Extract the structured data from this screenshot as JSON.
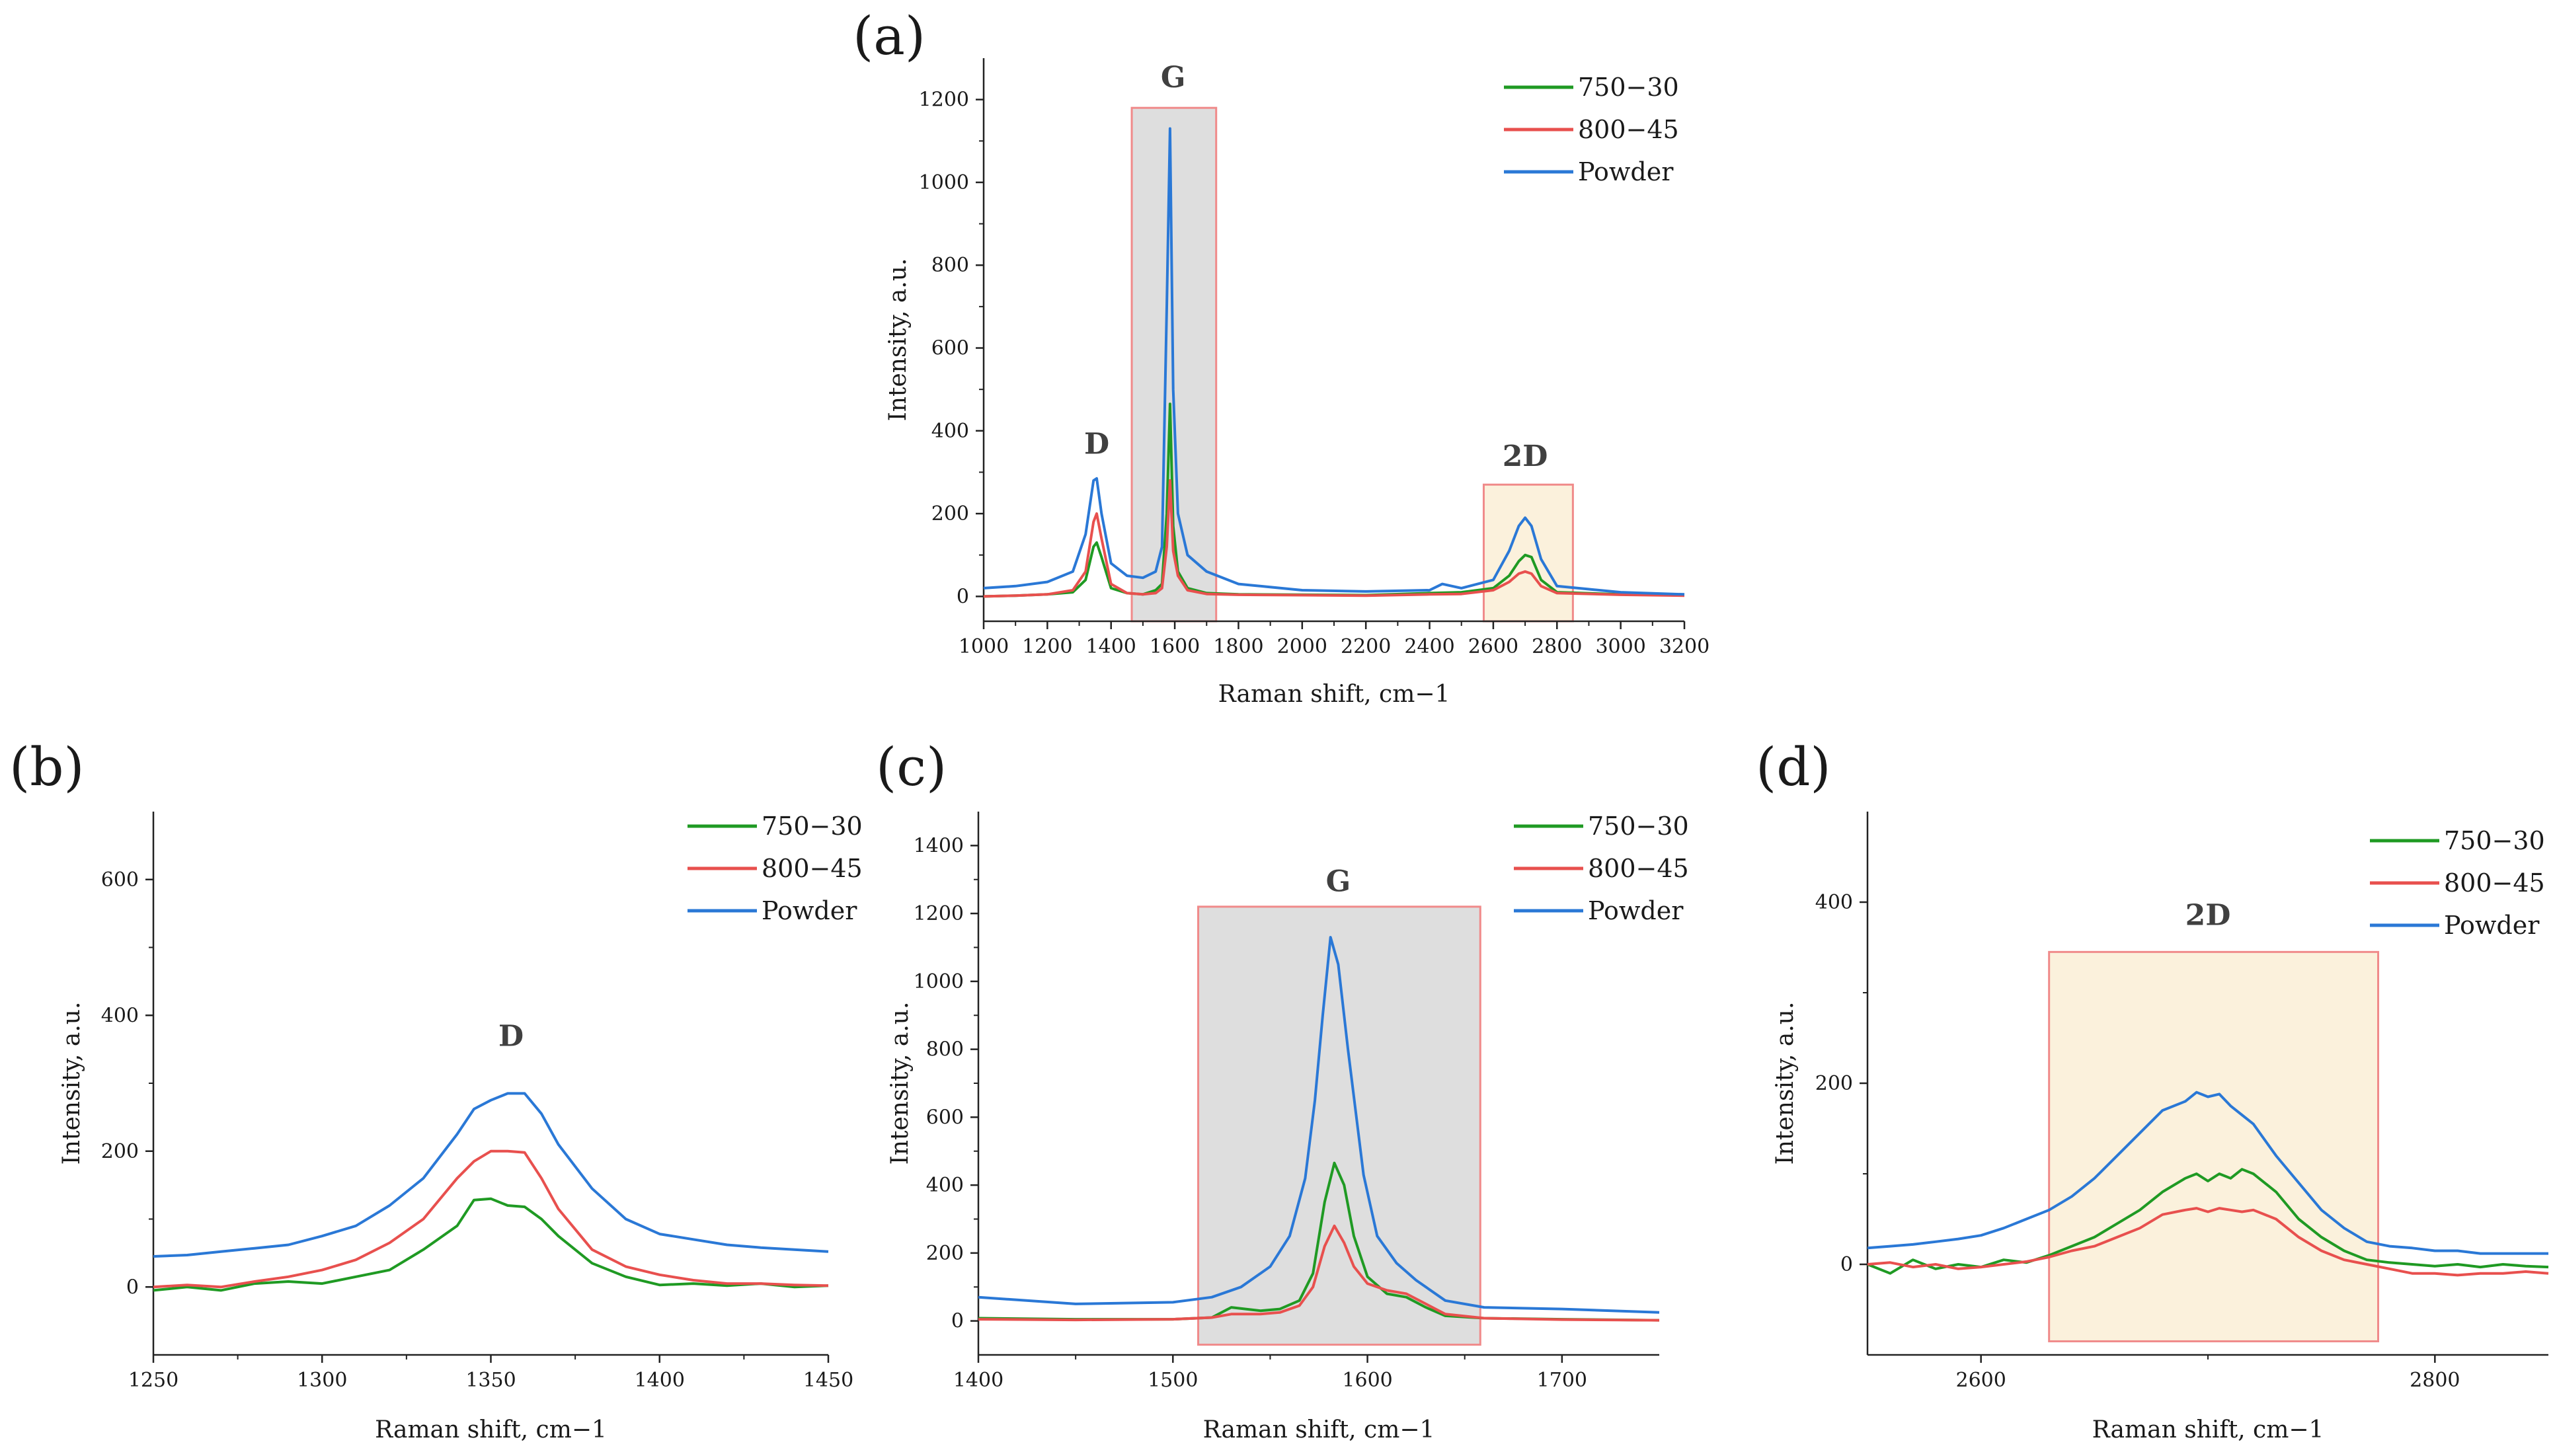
{
  "series_colors": {
    "750-30": "#1f9a23",
    "800-45": "#e8504e",
    "Powder": "#2a78d6"
  },
  "legend": [
    "750−30",
    "800−45",
    "Powder"
  ],
  "chart_data": [
    {
      "panel": "(a)",
      "type": "line",
      "xlabel": "Raman shift, cm−1",
      "ylabel": "Intensity, a.u.",
      "xlim": [
        1000,
        3200
      ],
      "ylim": [
        -60,
        1300
      ],
      "xticks": [
        1000,
        1200,
        1400,
        1600,
        1800,
        2000,
        2200,
        2400,
        2600,
        2800,
        3000,
        3200
      ],
      "yticks": [
        0,
        200,
        400,
        600,
        800,
        1000,
        1200
      ],
      "regions": [
        {
          "label": "G",
          "x": [
            1465,
            1730
          ],
          "y": [
            -60,
            1180
          ],
          "fill": "#dedede",
          "stroke": "#f08a8a"
        },
        {
          "label": "2D",
          "x": [
            2570,
            2850
          ],
          "y": [
            -60,
            270
          ],
          "fill": "#fbf1dc",
          "stroke": "#f08a8a"
        }
      ],
      "annotations": [
        {
          "text": "D",
          "x": 1355,
          "y": 345
        },
        {
          "text": "G",
          "x": 1595,
          "y": 1230
        },
        {
          "text": "2D",
          "x": 2700,
          "y": 315
        }
      ],
      "series": [
        {
          "name": "750−30",
          "x": [
            1000,
            1100,
            1200,
            1280,
            1320,
            1345,
            1355,
            1370,
            1400,
            1450,
            1500,
            1540,
            1560,
            1575,
            1585,
            1595,
            1610,
            1640,
            1700,
            1800,
            2000,
            2200,
            2400,
            2500,
            2600,
            2650,
            2680,
            2700,
            2720,
            2750,
            2800,
            3000,
            3200
          ],
          "y": [
            0,
            2,
            5,
            10,
            40,
            120,
            130,
            95,
            20,
            8,
            5,
            15,
            30,
            200,
            465,
            170,
            60,
            20,
            8,
            5,
            4,
            3,
            8,
            10,
            20,
            50,
            85,
            100,
            95,
            40,
            10,
            5,
            3
          ]
        },
        {
          "name": "800−45",
          "x": [
            1000,
            1100,
            1200,
            1280,
            1320,
            1345,
            1355,
            1370,
            1400,
            1450,
            1500,
            1540,
            1560,
            1575,
            1585,
            1595,
            1610,
            1640,
            1700,
            1800,
            2000,
            2200,
            2400,
            2500,
            2600,
            2650,
            2680,
            2700,
            2720,
            2750,
            2800,
            3000,
            3200
          ],
          "y": [
            0,
            2,
            5,
            15,
            60,
            180,
            200,
            140,
            30,
            8,
            5,
            8,
            20,
            120,
            280,
            110,
            50,
            15,
            6,
            4,
            3,
            2,
            5,
            6,
            15,
            35,
            55,
            60,
            55,
            25,
            8,
            4,
            2
          ]
        },
        {
          "name": "Powder",
          "x": [
            1000,
            1100,
            1200,
            1280,
            1320,
            1345,
            1355,
            1370,
            1400,
            1450,
            1500,
            1540,
            1560,
            1575,
            1585,
            1595,
            1610,
            1640,
            1700,
            1800,
            2000,
            2200,
            2400,
            2440,
            2500,
            2600,
            2650,
            2680,
            2700,
            2720,
            2750,
            2800,
            3000,
            3200
          ],
          "y": [
            20,
            25,
            35,
            60,
            150,
            280,
            285,
            200,
            80,
            50,
            45,
            60,
            120,
            700,
            1130,
            500,
            200,
            100,
            60,
            30,
            15,
            12,
            15,
            30,
            20,
            40,
            110,
            170,
            190,
            170,
            90,
            25,
            10,
            5
          ]
        }
      ]
    },
    {
      "panel": "(b)",
      "type": "line",
      "xlabel": "Raman shift, cm−1",
      "ylabel": "Intensity, a.u.",
      "xlim": [
        1250,
        1450
      ],
      "ylim": [
        -100,
        700
      ],
      "xticks": [
        1250,
        1300,
        1350,
        1400,
        1450
      ],
      "yticks": [
        0,
        200,
        400,
        600
      ],
      "regions": [],
      "annotations": [
        {
          "text": "D",
          "x": 1356,
          "y": 355
        }
      ],
      "series": [
        {
          "name": "750−30",
          "x": [
            1250,
            1260,
            1270,
            1280,
            1290,
            1300,
            1310,
            1320,
            1330,
            1340,
            1345,
            1350,
            1355,
            1360,
            1365,
            1370,
            1380,
            1390,
            1400,
            1410,
            1420,
            1430,
            1440,
            1450
          ],
          "y": [
            -5,
            0,
            -5,
            5,
            8,
            5,
            15,
            25,
            55,
            90,
            128,
            130,
            120,
            118,
            100,
            75,
            35,
            15,
            3,
            5,
            2,
            5,
            0,
            2
          ]
        },
        {
          "name": "800−45",
          "x": [
            1250,
            1260,
            1270,
            1280,
            1290,
            1300,
            1310,
            1320,
            1330,
            1340,
            1345,
            1350,
            1355,
            1360,
            1365,
            1370,
            1380,
            1390,
            1400,
            1410,
            1420,
            1430,
            1440,
            1450
          ],
          "y": [
            0,
            3,
            0,
            8,
            15,
            25,
            40,
            65,
            100,
            160,
            185,
            200,
            200,
            198,
            160,
            115,
            55,
            30,
            18,
            10,
            5,
            5,
            3,
            2
          ]
        },
        {
          "name": "Powder",
          "x": [
            1250,
            1260,
            1270,
            1280,
            1290,
            1300,
            1310,
            1320,
            1330,
            1340,
            1345,
            1350,
            1355,
            1360,
            1365,
            1370,
            1380,
            1390,
            1400,
            1410,
            1420,
            1430,
            1440,
            1450
          ],
          "y": [
            45,
            47,
            52,
            57,
            62,
            75,
            90,
            120,
            160,
            225,
            262,
            275,
            285,
            285,
            255,
            210,
            145,
            100,
            78,
            70,
            62,
            58,
            55,
            52
          ]
        }
      ]
    },
    {
      "panel": "(c)",
      "type": "line",
      "xlabel": "Raman shift, cm−1",
      "ylabel": "Intensity, a.u.",
      "xlim": [
        1400,
        1750
      ],
      "ylim": [
        -100,
        1500
      ],
      "xticks": [
        1400,
        1500,
        1600,
        1700
      ],
      "yticks": [
        0,
        200,
        400,
        600,
        800,
        1000,
        1200,
        1400
      ],
      "regions": [
        {
          "label": "G",
          "x": [
            1513,
            1658
          ],
          "y": [
            -70,
            1220
          ],
          "fill": "#dedede",
          "stroke": "#f08a8a"
        }
      ],
      "annotations": [
        {
          "text": "G",
          "x": 1585,
          "y": 1265
        }
      ],
      "series": [
        {
          "name": "750−30",
          "x": [
            1400,
            1450,
            1500,
            1520,
            1530,
            1545,
            1555,
            1565,
            1572,
            1578,
            1583,
            1588,
            1593,
            1600,
            1610,
            1620,
            1630,
            1640,
            1660,
            1700,
            1750
          ],
          "y": [
            8,
            5,
            5,
            10,
            40,
            30,
            35,
            60,
            140,
            350,
            465,
            400,
            250,
            130,
            80,
            70,
            40,
            15,
            8,
            5,
            2
          ]
        },
        {
          "name": "800−45",
          "x": [
            1400,
            1450,
            1500,
            1520,
            1530,
            1545,
            1555,
            1565,
            1572,
            1578,
            1583,
            1588,
            1593,
            1600,
            1610,
            1620,
            1630,
            1640,
            1660,
            1700,
            1750
          ],
          "y": [
            5,
            3,
            5,
            10,
            20,
            20,
            25,
            45,
            100,
            220,
            280,
            230,
            160,
            110,
            90,
            80,
            50,
            20,
            8,
            4,
            2
          ]
        },
        {
          "name": "Powder",
          "x": [
            1400,
            1450,
            1500,
            1520,
            1535,
            1550,
            1560,
            1568,
            1573,
            1577,
            1581,
            1585,
            1590,
            1598,
            1605,
            1615,
            1625,
            1640,
            1660,
            1700,
            1750
          ],
          "y": [
            70,
            50,
            55,
            70,
            100,
            160,
            250,
            420,
            650,
            900,
            1130,
            1050,
            800,
            430,
            250,
            170,
            120,
            60,
            40,
            35,
            25
          ]
        }
      ]
    },
    {
      "panel": "(d)",
      "type": "line",
      "xlabel": "Raman shift, cm−1",
      "ylabel": "Intensity, a.u.",
      "xlim": [
        2550,
        2850
      ],
      "ylim": [
        -100,
        500
      ],
      "xticks": [
        2600,
        2800
      ],
      "yticks": [
        0,
        200,
        400
      ],
      "regions": [
        {
          "label": "2D",
          "x": [
            2630,
            2775
          ],
          "y": [
            -85,
            345
          ],
          "fill": "#fbf1dc",
          "stroke": "#f08a8a"
        }
      ],
      "annotations": [
        {
          "text": "2D",
          "x": 2700,
          "y": 375
        }
      ],
      "series": [
        {
          "name": "750−30",
          "x": [
            2550,
            2560,
            2570,
            2580,
            2590,
            2600,
            2610,
            2620,
            2630,
            2640,
            2650,
            2660,
            2670,
            2680,
            2690,
            2695,
            2700,
            2705,
            2710,
            2715,
            2720,
            2730,
            2740,
            2750,
            2760,
            2770,
            2780,
            2790,
            2800,
            2810,
            2820,
            2830,
            2840,
            2850
          ],
          "y": [
            0,
            -10,
            5,
            -5,
            0,
            -3,
            5,
            2,
            10,
            20,
            30,
            45,
            60,
            80,
            95,
            100,
            92,
            100,
            95,
            105,
            100,
            80,
            50,
            30,
            15,
            5,
            2,
            0,
            -2,
            0,
            -3,
            0,
            -2,
            -3
          ]
        },
        {
          "name": "800−45",
          "x": [
            2550,
            2560,
            2570,
            2580,
            2590,
            2600,
            2610,
            2620,
            2630,
            2640,
            2650,
            2660,
            2670,
            2680,
            2690,
            2695,
            2700,
            2705,
            2710,
            2715,
            2720,
            2730,
            2740,
            2750,
            2760,
            2770,
            2780,
            2790,
            2800,
            2810,
            2820,
            2830,
            2840,
            2850
          ],
          "y": [
            0,
            2,
            -3,
            0,
            -5,
            -3,
            0,
            3,
            8,
            15,
            20,
            30,
            40,
            55,
            60,
            62,
            58,
            62,
            60,
            58,
            60,
            50,
            30,
            15,
            5,
            0,
            -5,
            -10,
            -10,
            -12,
            -10,
            -10,
            -8,
            -10
          ]
        },
        {
          "name": "Powder",
          "x": [
            2550,
            2560,
            2570,
            2580,
            2590,
            2600,
            2610,
            2620,
            2630,
            2640,
            2650,
            2660,
            2670,
            2680,
            2690,
            2695,
            2700,
            2705,
            2710,
            2715,
            2720,
            2730,
            2740,
            2750,
            2760,
            2770,
            2780,
            2790,
            2800,
            2810,
            2820,
            2830,
            2840,
            2850
          ],
          "y": [
            18,
            20,
            22,
            25,
            28,
            32,
            40,
            50,
            60,
            75,
            95,
            120,
            145,
            170,
            180,
            190,
            185,
            188,
            175,
            165,
            155,
            120,
            90,
            60,
            40,
            25,
            20,
            18,
            15,
            15,
            12,
            12,
            12,
            12
          ]
        }
      ]
    }
  ]
}
